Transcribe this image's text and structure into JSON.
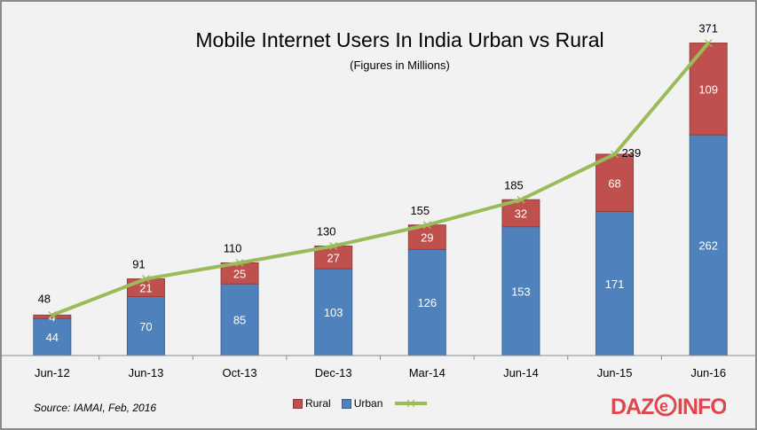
{
  "chart_data": {
    "type": "bar",
    "stacked": true,
    "title": "Mobile Internet Users In India Urban vs Rural",
    "subtitle": "(Figures in Millions)",
    "categories": [
      "Jun-12",
      "Jun-13",
      "Oct-13",
      "Dec-13",
      "Mar-14",
      "Jun-14",
      "Jun-15",
      "Jun-16"
    ],
    "series": [
      {
        "name": "Urban",
        "type": "bar",
        "color": "#4f81bd",
        "values": [
          44,
          70,
          85,
          103,
          126,
          153,
          171,
          262
        ]
      },
      {
        "name": "Rural",
        "type": "bar",
        "color": "#c0504d",
        "values": [
          4,
          21,
          25,
          27,
          29,
          32,
          68,
          109
        ]
      },
      {
        "name": "",
        "type": "line",
        "color": "#9bbb59",
        "marker": "x",
        "values": [
          48,
          91,
          110,
          130,
          155,
          185,
          239,
          371
        ]
      }
    ],
    "ylim": [
      0,
      400
    ],
    "y_axis_visible": false,
    "grid": false,
    "legend": "bottom",
    "source": "Source: IAMAI, Feb, 2016",
    "logo_text": "DAZEINFO"
  }
}
